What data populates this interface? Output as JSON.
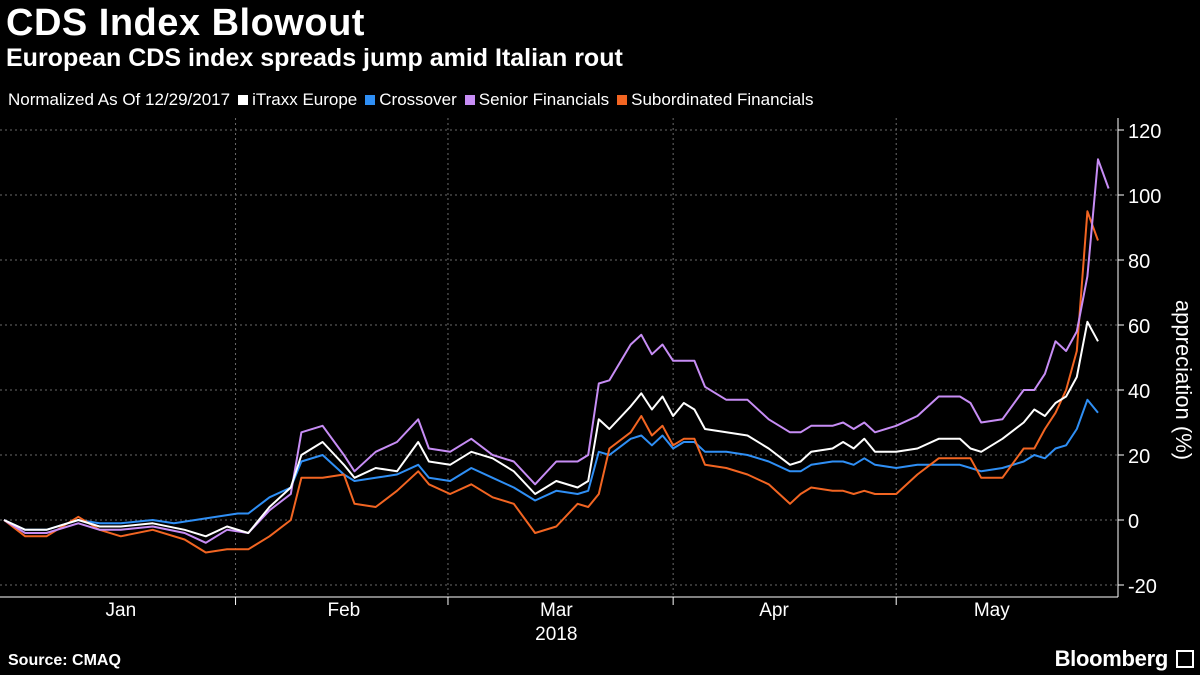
{
  "header": {
    "title": "CDS Index Blowout",
    "subtitle": "European CDS index spreads jump amid Italian rout"
  },
  "legend": {
    "note": "Normalized As Of 12/29/2017",
    "items": [
      {
        "label": "iTraxx Europe",
        "color": "#ffffff"
      },
      {
        "label": "Crossover",
        "color": "#2f8ff5"
      },
      {
        "label": "Senior Financials",
        "color": "#c78df5"
      },
      {
        "label": "Subordinated Financials",
        "color": "#f26522"
      }
    ]
  },
  "footer": {
    "source": "Source: CMAQ",
    "brand": "Bloomberg"
  },
  "chart_data": {
    "type": "line",
    "ylabel": "appreciation (%)",
    "ylim": [
      -20,
      120
    ],
    "yticks": [
      -20,
      0,
      20,
      40,
      60,
      80,
      100,
      120
    ],
    "xlim": [
      0,
      103
    ],
    "x_unit": "trading day index from 12/29/2017",
    "xlabels": [
      {
        "label": "Jan",
        "x": 11
      },
      {
        "label": "Feb",
        "x": 32
      },
      {
        "label": "Mar",
        "x": 52
      },
      {
        "label": "Apr",
        "x": 72.5
      },
      {
        "label": "May",
        "x": 93
      }
    ],
    "month_ticks": [
      21.8,
      41.8,
      63,
      84
    ],
    "year_label": {
      "label": "2018",
      "x": 52
    },
    "grid": true,
    "series": [
      {
        "name": "iTraxx Europe",
        "color": "#ffffff",
        "points": [
          [
            0,
            0
          ],
          [
            2,
            -3
          ],
          [
            4,
            -3
          ],
          [
            7,
            0
          ],
          [
            9,
            -2
          ],
          [
            11,
            -2
          ],
          [
            14,
            -1
          ],
          [
            17,
            -3
          ],
          [
            19,
            -5
          ],
          [
            21,
            -2
          ],
          [
            23,
            -4
          ],
          [
            25,
            4
          ],
          [
            27,
            10
          ],
          [
            28,
            20
          ],
          [
            30,
            24
          ],
          [
            32,
            17
          ],
          [
            33,
            13
          ],
          [
            35,
            16
          ],
          [
            37,
            15
          ],
          [
            39,
            24
          ],
          [
            40,
            18
          ],
          [
            42,
            17
          ],
          [
            44,
            21
          ],
          [
            46,
            19
          ],
          [
            48,
            15
          ],
          [
            50,
            8
          ],
          [
            52,
            12
          ],
          [
            54,
            10
          ],
          [
            55,
            12
          ],
          [
            56,
            31
          ],
          [
            57,
            28
          ],
          [
            59,
            35
          ],
          [
            60,
            39
          ],
          [
            61,
            34
          ],
          [
            62,
            38
          ],
          [
            63,
            32
          ],
          [
            64,
            36
          ],
          [
            65,
            34
          ],
          [
            66,
            28
          ],
          [
            68,
            27
          ],
          [
            70,
            26
          ],
          [
            72,
            22
          ],
          [
            74,
            17
          ],
          [
            75,
            18
          ],
          [
            76,
            21
          ],
          [
            78,
            22
          ],
          [
            79,
            24
          ],
          [
            80,
            22
          ],
          [
            81,
            25
          ],
          [
            82,
            21
          ],
          [
            84,
            21
          ],
          [
            86,
            22
          ],
          [
            88,
            25
          ],
          [
            90,
            25
          ],
          [
            91,
            22
          ],
          [
            92,
            21
          ],
          [
            94,
            25
          ],
          [
            96,
            30
          ],
          [
            97,
            34
          ],
          [
            98,
            32
          ],
          [
            99,
            36
          ],
          [
            100,
            38
          ],
          [
            101,
            44
          ],
          [
            102,
            61
          ],
          [
            103,
            55
          ]
        ]
      },
      {
        "name": "Crossover",
        "color": "#2f8ff5",
        "points": [
          [
            0,
            0
          ],
          [
            2,
            -3
          ],
          [
            4,
            -3
          ],
          [
            7,
            0
          ],
          [
            9,
            -1
          ],
          [
            11,
            -1
          ],
          [
            14,
            0
          ],
          [
            16,
            -1
          ],
          [
            18,
            0
          ],
          [
            20,
            1
          ],
          [
            22,
            2
          ],
          [
            23,
            2
          ],
          [
            25,
            7
          ],
          [
            27,
            10
          ],
          [
            28,
            18
          ],
          [
            30,
            20
          ],
          [
            32,
            14
          ],
          [
            33,
            12
          ],
          [
            35,
            13
          ],
          [
            37,
            14
          ],
          [
            39,
            17
          ],
          [
            40,
            13
          ],
          [
            42,
            12
          ],
          [
            44,
            16
          ],
          [
            46,
            13
          ],
          [
            48,
            10
          ],
          [
            50,
            6
          ],
          [
            52,
            9
          ],
          [
            54,
            8
          ],
          [
            55,
            9
          ],
          [
            56,
            21
          ],
          [
            57,
            20
          ],
          [
            59,
            25
          ],
          [
            60,
            26
          ],
          [
            61,
            23
          ],
          [
            62,
            26
          ],
          [
            63,
            22
          ],
          [
            64,
            24
          ],
          [
            65,
            24
          ],
          [
            66,
            21
          ],
          [
            68,
            21
          ],
          [
            70,
            20
          ],
          [
            72,
            18
          ],
          [
            74,
            15
          ],
          [
            75,
            15
          ],
          [
            76,
            17
          ],
          [
            78,
            18
          ],
          [
            79,
            18
          ],
          [
            80,
            17
          ],
          [
            81,
            19
          ],
          [
            82,
            17
          ],
          [
            84,
            16
          ],
          [
            86,
            17
          ],
          [
            88,
            17
          ],
          [
            90,
            17
          ],
          [
            91,
            16
          ],
          [
            92,
            15
          ],
          [
            94,
            16
          ],
          [
            96,
            18
          ],
          [
            97,
            20
          ],
          [
            98,
            19
          ],
          [
            99,
            22
          ],
          [
            100,
            23
          ],
          [
            101,
            28
          ],
          [
            102,
            37
          ],
          [
            103,
            33
          ]
        ]
      },
      {
        "name": "Senior Financials",
        "color": "#c78df5",
        "points": [
          [
            0,
            0
          ],
          [
            2,
            -4
          ],
          [
            4,
            -4
          ],
          [
            7,
            -1
          ],
          [
            9,
            -3
          ],
          [
            11,
            -3
          ],
          [
            14,
            -2
          ],
          [
            17,
            -4
          ],
          [
            19,
            -7
          ],
          [
            21,
            -3
          ],
          [
            23,
            -4
          ],
          [
            25,
            3
          ],
          [
            27,
            8
          ],
          [
            28,
            27
          ],
          [
            30,
            29
          ],
          [
            32,
            20
          ],
          [
            33,
            15
          ],
          [
            35,
            21
          ],
          [
            37,
            24
          ],
          [
            39,
            31
          ],
          [
            40,
            22
          ],
          [
            42,
            21
          ],
          [
            44,
            25
          ],
          [
            46,
            20
          ],
          [
            48,
            18
          ],
          [
            50,
            11
          ],
          [
            52,
            18
          ],
          [
            54,
            18
          ],
          [
            55,
            20
          ],
          [
            56,
            42
          ],
          [
            57,
            43
          ],
          [
            59,
            54
          ],
          [
            60,
            57
          ],
          [
            61,
            51
          ],
          [
            62,
            54
          ],
          [
            63,
            49
          ],
          [
            64,
            49
          ],
          [
            65,
            49
          ],
          [
            66,
            41
          ],
          [
            68,
            37
          ],
          [
            70,
            37
          ],
          [
            72,
            31
          ],
          [
            74,
            27
          ],
          [
            75,
            27
          ],
          [
            76,
            29
          ],
          [
            78,
            29
          ],
          [
            79,
            30
          ],
          [
            80,
            28
          ],
          [
            81,
            30
          ],
          [
            82,
            27
          ],
          [
            84,
            29
          ],
          [
            86,
            32
          ],
          [
            88,
            38
          ],
          [
            90,
            38
          ],
          [
            91,
            36
          ],
          [
            92,
            30
          ],
          [
            94,
            31
          ],
          [
            96,
            40
          ],
          [
            97,
            40
          ],
          [
            98,
            45
          ],
          [
            99,
            55
          ],
          [
            100,
            52
          ],
          [
            101,
            58
          ],
          [
            102,
            75
          ],
          [
            103,
            111
          ],
          [
            104,
            102
          ]
        ]
      },
      {
        "name": "Subordinated Financials",
        "color": "#f26522",
        "points": [
          [
            0,
            0
          ],
          [
            2,
            -5
          ],
          [
            4,
            -5
          ],
          [
            7,
            1
          ],
          [
            9,
            -3
          ],
          [
            11,
            -5
          ],
          [
            14,
            -3
          ],
          [
            17,
            -6
          ],
          [
            19,
            -10
          ],
          [
            21,
            -9
          ],
          [
            23,
            -9
          ],
          [
            25,
            -5
          ],
          [
            27,
            0
          ],
          [
            28,
            13
          ],
          [
            30,
            13
          ],
          [
            32,
            14
          ],
          [
            33,
            5
          ],
          [
            35,
            4
          ],
          [
            37,
            9
          ],
          [
            39,
            15
          ],
          [
            40,
            11
          ],
          [
            42,
            8
          ],
          [
            44,
            11
          ],
          [
            46,
            7
          ],
          [
            48,
            5
          ],
          [
            50,
            -4
          ],
          [
            52,
            -2
          ],
          [
            54,
            5
          ],
          [
            55,
            4
          ],
          [
            56,
            8
          ],
          [
            57,
            22
          ],
          [
            59,
            27
          ],
          [
            60,
            32
          ],
          [
            61,
            26
          ],
          [
            62,
            29
          ],
          [
            63,
            23
          ],
          [
            64,
            25
          ],
          [
            65,
            25
          ],
          [
            66,
            17
          ],
          [
            68,
            16
          ],
          [
            70,
            14
          ],
          [
            72,
            11
          ],
          [
            74,
            5
          ],
          [
            75,
            8
          ],
          [
            76,
            10
          ],
          [
            78,
            9
          ],
          [
            79,
            9
          ],
          [
            80,
            8
          ],
          [
            81,
            9
          ],
          [
            82,
            8
          ],
          [
            84,
            8
          ],
          [
            86,
            14
          ],
          [
            88,
            19
          ],
          [
            90,
            19
          ],
          [
            91,
            19
          ],
          [
            92,
            13
          ],
          [
            94,
            13
          ],
          [
            96,
            22
          ],
          [
            97,
            22
          ],
          [
            98,
            28
          ],
          [
            99,
            33
          ],
          [
            100,
            40
          ],
          [
            101,
            52
          ],
          [
            102,
            95
          ],
          [
            103,
            86
          ]
        ]
      }
    ]
  }
}
